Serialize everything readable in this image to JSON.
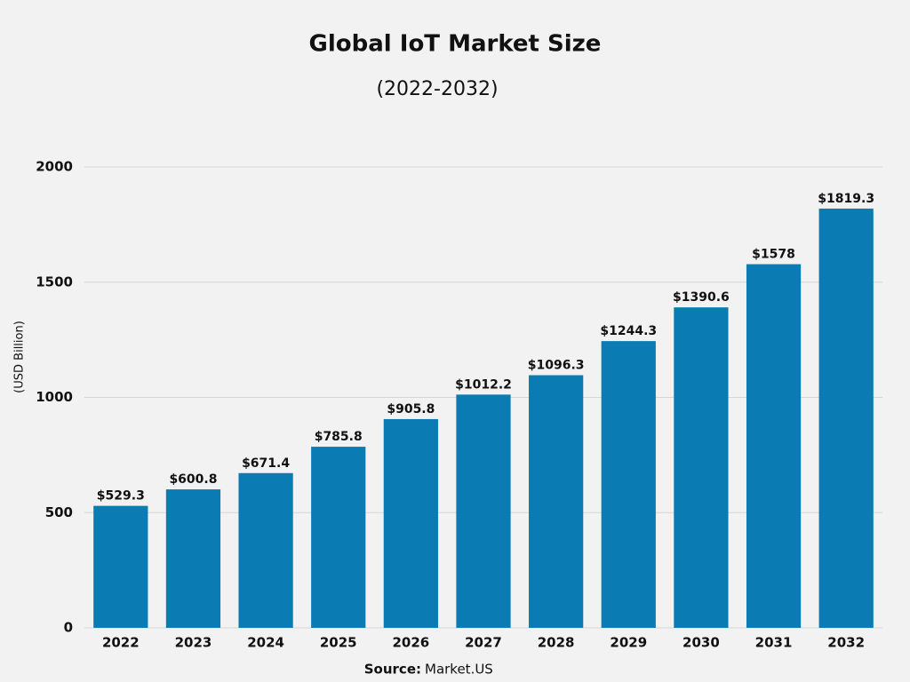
{
  "chart_data": {
    "type": "bar",
    "title": "Global IoT Market Size",
    "subtitle": "(2022-2032)",
    "y_label": "(USD Billion)",
    "source_label": "Source:",
    "source": "Market.US",
    "categories": [
      "2022",
      "2023",
      "2024",
      "2025",
      "2026",
      "2027",
      "2028",
      "2029",
      "2030",
      "2031",
      "2032"
    ],
    "values": [
      529.3,
      600.8,
      671.4,
      785.8,
      905.8,
      1012.2,
      1096.3,
      1244.3,
      1390.6,
      1578,
      1819.3
    ],
    "value_labels": [
      "$529.3",
      "$600.8",
      "$671.4",
      "$785.8",
      "$905.8",
      "$1012.2",
      "$1096.3",
      "$1244.3",
      "$1390.6",
      "$1578",
      "$1819.3"
    ],
    "color": "#0a7bb3",
    "ylim": [
      0,
      2000
    ],
    "yticks": [
      0,
      500,
      1000,
      1500,
      2000
    ],
    "grid": true
  }
}
